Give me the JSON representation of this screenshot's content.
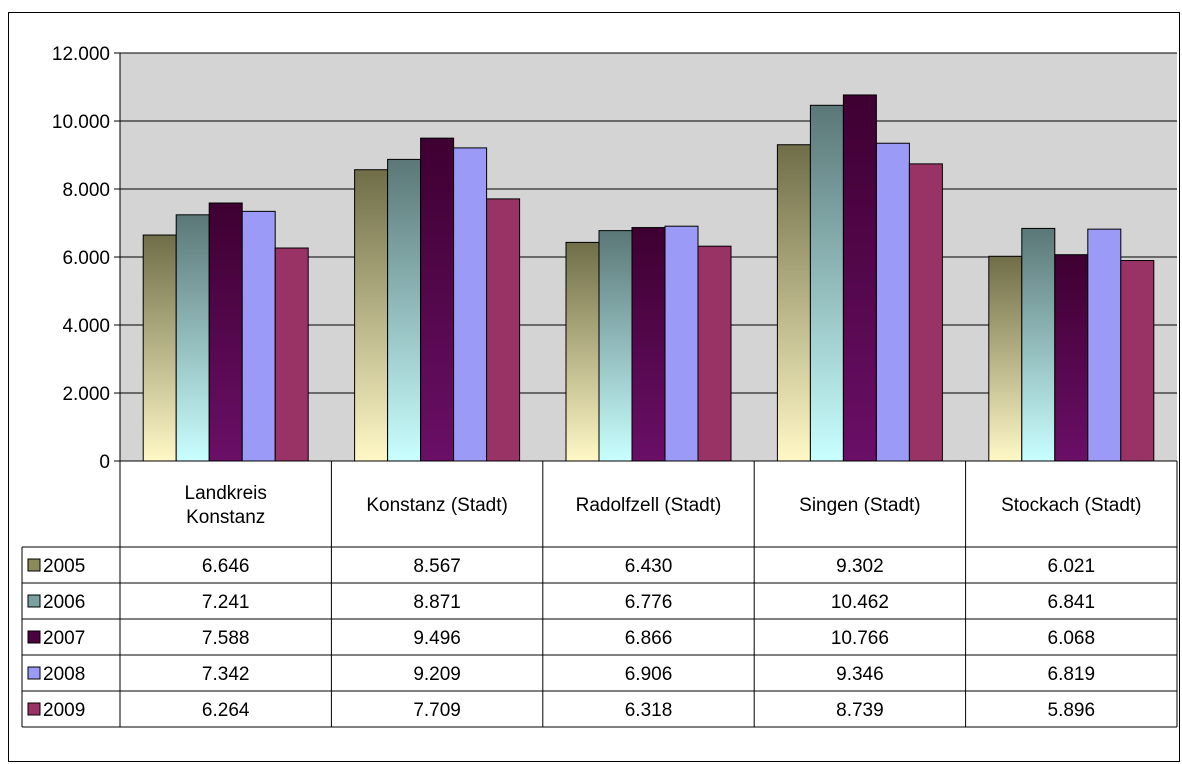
{
  "chart_data": {
    "type": "bar",
    "title": "",
    "xlabel": "",
    "ylabel": "",
    "ylim": [
      0,
      12000
    ],
    "yticks": [
      0,
      2000,
      4000,
      6000,
      8000,
      10000,
      12000
    ],
    "ytick_labels": [
      "0",
      "2.000",
      "4.000",
      "6.000",
      "8.000",
      "10.000",
      "12.000"
    ],
    "categories": [
      [
        "Landkreis",
        "Konstanz"
      ],
      [
        "Konstanz (Stadt)"
      ],
      [
        "Radolfzell (Stadt)"
      ],
      [
        "Singen (Stadt)"
      ],
      [
        "Stockach (Stadt)"
      ]
    ],
    "grid": true,
    "legend": "data-table",
    "series": [
      {
        "name": "2005",
        "values": [
          6646,
          8567,
          6430,
          9302,
          6021
        ],
        "labels": [
          "6.646",
          "8.567",
          "6.430",
          "9.302",
          "6.021"
        ],
        "colors": [
          "#6f6e48",
          "#fff8c6"
        ],
        "swatch": "#8a8a5a"
      },
      {
        "name": "2006",
        "values": [
          7241,
          8871,
          6776,
          10462,
          6841
        ],
        "labels": [
          "7.241",
          "8.871",
          "6.776",
          "10.462",
          "6.841"
        ],
        "colors": [
          "#5b7777",
          "#c9ffff"
        ],
        "swatch": "#7aa0a0"
      },
      {
        "name": "2007",
        "values": [
          7588,
          9496,
          6866,
          10766,
          6068
        ],
        "labels": [
          "7.588",
          "9.496",
          "6.866",
          "10.766",
          "6.068"
        ],
        "colors": [
          "#3e0031",
          "#6a0f67"
        ],
        "swatch": "#4c0040"
      },
      {
        "name": "2008",
        "values": [
          7342,
          9209,
          6906,
          9346,
          6819
        ],
        "labels": [
          "7.342",
          "9.209",
          "6.906",
          "9.346",
          "6.819"
        ],
        "colors": [
          "#9b9bf7",
          "#9b9bf7"
        ],
        "swatch": "#9b9bf7"
      },
      {
        "name": "2009",
        "values": [
          6264,
          7709,
          6318,
          8739,
          5896
        ],
        "labels": [
          "6.264",
          "7.709",
          "6.318",
          "8.739",
          "5.896"
        ],
        "colors": [
          "#993366",
          "#993366"
        ],
        "swatch": "#993366"
      }
    ],
    "colors": {
      "plot_background": "#d4d4d4",
      "grid": "#000000",
      "bar_border": "#000000"
    }
  }
}
